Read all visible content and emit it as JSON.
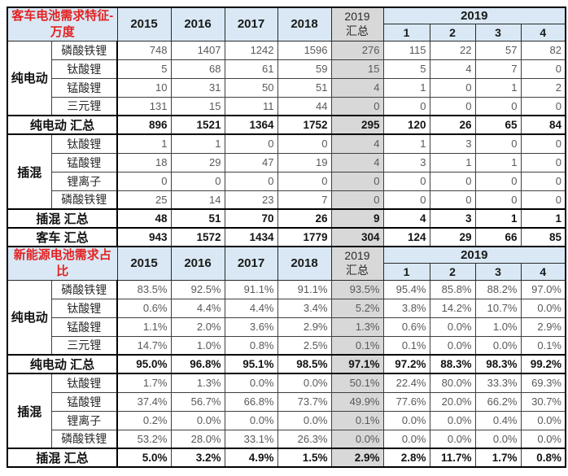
{
  "colors": {
    "header_bg": "#d9e8f4",
    "summary_col_bg": "#d8d8d8",
    "title_red": "#e32222",
    "value_text": "#595959",
    "border": "#000000"
  },
  "chart_data": {
    "type": "table",
    "sections": [
      {
        "title": "客车电池需求特征-万度",
        "years": [
          "2015",
          "2016",
          "2017",
          "2018"
        ],
        "summary_col": "2019\n汇总",
        "span_col": "2019",
        "quarters": [
          "1",
          "2",
          "3",
          "4"
        ],
        "groups": [
          {
            "label": "纯电动",
            "rows": [
              {
                "label": "磷酸铁锂",
                "values": [
                  "748",
                  "1407",
                  "1242",
                  "1596",
                  "276",
                  "115",
                  "22",
                  "57",
                  "82"
                ]
              },
              {
                "label": "钛酸锂",
                "values": [
                  "5",
                  "68",
                  "61",
                  "59",
                  "15",
                  "5",
                  "4",
                  "7",
                  "0"
                ]
              },
              {
                "label": "锰酸锂",
                "values": [
                  "10",
                  "31",
                  "50",
                  "51",
                  "4",
                  "1",
                  "0",
                  "1",
                  "2"
                ]
              },
              {
                "label": "三元锂",
                "values": [
                  "131",
                  "15",
                  "11",
                  "44",
                  "0",
                  "0",
                  "0",
                  "0",
                  "0"
                ]
              }
            ],
            "summary": {
              "label": "纯电动 汇总",
              "values": [
                "896",
                "1521",
                "1364",
                "1752",
                "295",
                "120",
                "26",
                "65",
                "84"
              ]
            }
          },
          {
            "label": "插混",
            "rows": [
              {
                "label": "钛酸锂",
                "values": [
                  "1",
                  "1",
                  "0",
                  "0",
                  "4",
                  "1",
                  "3",
                  "0",
                  "0"
                ]
              },
              {
                "label": "锰酸锂",
                "values": [
                  "18",
                  "29",
                  "47",
                  "19",
                  "4",
                  "3",
                  "1",
                  "1",
                  "0"
                ]
              },
              {
                "label": "锂离子",
                "values": [
                  "0",
                  "0",
                  "0",
                  "0",
                  "0",
                  "0",
                  "0",
                  "0",
                  "0"
                ]
              },
              {
                "label": "磷酸铁锂",
                "values": [
                  "25",
                  "14",
                  "23",
                  "7",
                  "0",
                  "0",
                  "0",
                  "0",
                  "0"
                ]
              }
            ],
            "summary": {
              "label": "插混 汇总",
              "values": [
                "48",
                "51",
                "70",
                "26",
                "9",
                "4",
                "3",
                "1",
                "1"
              ]
            }
          }
        ],
        "total": {
          "label": "客车 汇总",
          "values": [
            "943",
            "1572",
            "1434",
            "1779",
            "304",
            "124",
            "29",
            "66",
            "85"
          ]
        }
      },
      {
        "title": "新能源电池需求占比",
        "years": [
          "2015",
          "2016",
          "2017",
          "2018"
        ],
        "summary_col": "2019\n汇总",
        "span_col": "2019",
        "quarters": [
          "1",
          "2",
          "3",
          "4"
        ],
        "groups": [
          {
            "label": "纯电动",
            "rows": [
              {
                "label": "磷酸铁锂",
                "values": [
                  "83.5%",
                  "92.5%",
                  "91.1%",
                  "91.1%",
                  "93.5%",
                  "95.4%",
                  "85.8%",
                  "88.2%",
                  "97.0%"
                ]
              },
              {
                "label": "钛酸锂",
                "values": [
                  "0.6%",
                  "4.4%",
                  "4.4%",
                  "3.4%",
                  "5.2%",
                  "3.8%",
                  "14.2%",
                  "10.7%",
                  "0.0%"
                ]
              },
              {
                "label": "锰酸锂",
                "values": [
                  "1.1%",
                  "2.0%",
                  "3.6%",
                  "2.9%",
                  "1.3%",
                  "0.6%",
                  "0.0%",
                  "1.0%",
                  "2.9%"
                ]
              },
              {
                "label": "三元锂",
                "values": [
                  "14.7%",
                  "1.0%",
                  "0.8%",
                  "2.5%",
                  "0.1%",
                  "0.1%",
                  "0.0%",
                  "0.0%",
                  "0.1%"
                ]
              }
            ],
            "summary": {
              "label": "纯电动 汇总",
              "values": [
                "95.0%",
                "96.8%",
                "95.1%",
                "98.5%",
                "97.1%",
                "97.2%",
                "88.3%",
                "98.3%",
                "99.2%"
              ]
            }
          },
          {
            "label": "插混",
            "rows": [
              {
                "label": "钛酸锂",
                "values": [
                  "1.7%",
                  "1.3%",
                  "0.0%",
                  "0.0%",
                  "50.1%",
                  "22.4%",
                  "80.0%",
                  "33.3%",
                  "69.3%"
                ]
              },
              {
                "label": "锰酸锂",
                "values": [
                  "37.4%",
                  "56.7%",
                  "66.8%",
                  "73.7%",
                  "49.9%",
                  "77.6%",
                  "20.0%",
                  "66.2%",
                  "30.7%"
                ]
              },
              {
                "label": "锂离子",
                "values": [
                  "0.2%",
                  "0.0%",
                  "0.0%",
                  "0.0%",
                  "0.1%",
                  "0.0%",
                  "0.0%",
                  "0.4%",
                  "0.0%"
                ]
              },
              {
                "label": "磷酸铁锂",
                "values": [
                  "53.2%",
                  "28.0%",
                  "33.1%",
                  "26.3%",
                  "0.0%",
                  "0.0%",
                  "0.0%",
                  "0.0%",
                  "0.0%"
                ]
              }
            ],
            "summary": {
              "label": "插混 汇总",
              "values": [
                "5.0%",
                "3.2%",
                "4.9%",
                "1.5%",
                "2.9%",
                "2.8%",
                "11.7%",
                "1.7%",
                "0.8%"
              ]
            }
          }
        ]
      }
    ]
  }
}
